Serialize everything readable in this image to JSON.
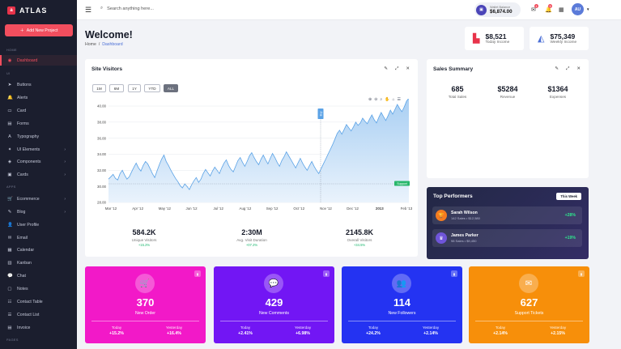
{
  "brand": {
    "logo": "a",
    "name": "ATLAS"
  },
  "sidebar": {
    "add_button": "Add New Project",
    "sections": {
      "home": "HOME",
      "ui": "UI",
      "apps": "APPS",
      "pages": "PAGES"
    },
    "items": [
      {
        "label": "Dashboard",
        "icon": "dashboard-icon",
        "glyph": "◉"
      },
      {
        "label": "Buttons",
        "icon": "cursor-icon",
        "glyph": "➤"
      },
      {
        "label": "Alerts",
        "icon": "bell-icon",
        "glyph": "🔔"
      },
      {
        "label": "Card",
        "icon": "card-icon",
        "glyph": "▭"
      },
      {
        "label": "Forms",
        "icon": "forms-icon",
        "glyph": "▤"
      },
      {
        "label": "Typography",
        "icon": "typography-icon",
        "glyph": "A"
      },
      {
        "label": "UI Elements",
        "icon": "elements-icon",
        "glyph": "✦"
      },
      {
        "label": "Components",
        "icon": "components-icon",
        "glyph": "◈"
      },
      {
        "label": "Cards",
        "icon": "cards-icon",
        "glyph": "▣"
      },
      {
        "label": "Ecommerce",
        "icon": "cart-icon",
        "glyph": "🛒"
      },
      {
        "label": "Blog",
        "icon": "blog-icon",
        "glyph": "✎"
      },
      {
        "label": "User Profile",
        "icon": "user-icon",
        "glyph": "👤"
      },
      {
        "label": "Email",
        "icon": "email-icon",
        "glyph": "✉"
      },
      {
        "label": "Calendar",
        "icon": "calendar-icon",
        "glyph": "▦"
      },
      {
        "label": "Kanban",
        "icon": "kanban-icon",
        "glyph": "▥"
      },
      {
        "label": "Chat",
        "icon": "chat-icon",
        "glyph": "💬"
      },
      {
        "label": "Notes",
        "icon": "notes-icon",
        "glyph": "▢"
      },
      {
        "label": "Contact Table",
        "icon": "table-icon",
        "glyph": "☷"
      },
      {
        "label": "Contact List",
        "icon": "list-icon",
        "glyph": "☰"
      },
      {
        "label": "Invoice",
        "icon": "invoice-icon",
        "glyph": "▤"
      }
    ]
  },
  "topbar": {
    "search_placeholder": "Search anything here...",
    "wallet_label": "Wallet Balance",
    "wallet_value": "$6,874.00",
    "mail_badge": "4",
    "bell_badge": "5",
    "avatar": "AU"
  },
  "header": {
    "title": "Welcome!",
    "breadcrumb_home": "Home",
    "breadcrumb_sep": "/",
    "breadcrumb_current": "Dashboard"
  },
  "stats": [
    {
      "value": "$8,521",
      "label": "Today Income",
      "color": "#e8334a"
    },
    {
      "value": "$75,349",
      "label": "Weekly Income",
      "color": "#4b6fd6"
    }
  ],
  "site_visitors": {
    "title": "Site Visitors",
    "ranges": [
      "1M",
      "6M",
      "1Y",
      "YTD",
      "ALL"
    ],
    "selected_range": "ALL",
    "kpis": [
      {
        "value": "584.2K",
        "label": "Unique Visitors",
        "change": "+15.2%"
      },
      {
        "value": "2:30M",
        "label": "Avg. Visit Duration",
        "change": "+07.2%"
      },
      {
        "value": "2145.8K",
        "label": "Overall Visitors",
        "change": "+34.5%"
      }
    ]
  },
  "chart_data": {
    "type": "area",
    "x_tick_labels": [
      "Mar '12",
      "Apr '12",
      "May '12",
      "Jun '12",
      "Jul '12",
      "Aug '12",
      "Sep '12",
      "Oct '12",
      "Nov '12",
      "Dec '12",
      "2013",
      "Feb '13"
    ],
    "y_tick_labels": [
      "28.00",
      "30.00",
      "32.00",
      "34.00",
      "36.00",
      "38.00",
      "40.00"
    ],
    "ylim": [
      28,
      40
    ],
    "series": [
      {
        "values": [
          30.9,
          31.2,
          31.5,
          31.0,
          30.8,
          31.6,
          32.0,
          31.4,
          30.9,
          31.2,
          31.8,
          32.4,
          32.9,
          32.3,
          31.9,
          32.6,
          33.1,
          32.8,
          32.2,
          31.6,
          31.1,
          31.9,
          32.7,
          33.4,
          33.9,
          33.1,
          32.6,
          32.0,
          31.5,
          31.0,
          30.6,
          30.1,
          29.8,
          30.3,
          30.0,
          29.6,
          30.2,
          30.7,
          31.1,
          30.5,
          30.9,
          31.6,
          32.1,
          31.7,
          31.3,
          31.9,
          32.4,
          32.0,
          31.6,
          32.3,
          32.9,
          33.3,
          32.6,
          32.1,
          31.8,
          32.5,
          33.2,
          33.6,
          33.0,
          32.5,
          33.1,
          33.8,
          34.2,
          33.6,
          33.1,
          32.7,
          33.4,
          33.9,
          33.3,
          32.8,
          33.5,
          34.1,
          33.6,
          33.0,
          32.5,
          33.2,
          33.7,
          34.3,
          33.8,
          33.3,
          32.8,
          32.3,
          32.9,
          33.5,
          32.9,
          32.4,
          32.0,
          32.6,
          33.1,
          32.5,
          32.0,
          31.6,
          32.2,
          32.8,
          33.4,
          34.0,
          34.6,
          35.2,
          35.9,
          36.6,
          37.0,
          36.5,
          37.1,
          37.7,
          37.3,
          36.9,
          37.4,
          38.0,
          37.6,
          37.9,
          38.5,
          38.1,
          37.8,
          38.4,
          38.9,
          38.3,
          37.9,
          38.6,
          39.2,
          38.7,
          38.2,
          38.8,
          39.5,
          39.0,
          39.6,
          40.2,
          39.7,
          39.3,
          39.9,
          40.6,
          41.0
        ]
      }
    ],
    "annotations": [
      "Buy",
      "Support"
    ],
    "grid": true,
    "colors": {
      "line": "#5aa2e6",
      "fill_top": "#a9cff3",
      "fill_bottom": "#eaf3fc",
      "annotation": "#5aa2e6",
      "support": "#28b76b"
    }
  },
  "sales_summary": {
    "title": "Sales Summary",
    "items": [
      {
        "value": "685",
        "label": "Total Sales"
      },
      {
        "value": "$5284",
        "label": "Revenue"
      },
      {
        "value": "$1364",
        "label": "Expenses"
      }
    ]
  },
  "top_performers": {
    "title": "Top Performers",
    "badge": "This Week",
    "people": [
      {
        "name": "Sarah Wilson",
        "sub": "142 Sales • $12,580",
        "pct": "+28%",
        "color": "#f47b20",
        "glyph": "🏆"
      },
      {
        "name": "James Parker",
        "sub": "98 Sales • $9,450",
        "pct": "+19%",
        "color": "#6f55d9",
        "glyph": "♛"
      }
    ]
  },
  "color_cards": [
    {
      "value": "370",
      "label": "New Order",
      "today_label": "Today",
      "today": "+15.2%",
      "yest_label": "Yesterday",
      "yest": "+16.4%",
      "color": "#f219c8",
      "icon": "cart-icon",
      "glyph": "🛒",
      "tag": "▮"
    },
    {
      "value": "429",
      "label": "New Comments",
      "today_label": "Today",
      "today": "+2.41%",
      "yest_label": "Yesterday",
      "yest": "+6.98%",
      "color": "#7216f4",
      "icon": "comments-icon",
      "glyph": "💬",
      "tag": "▮"
    },
    {
      "value": "114",
      "label": "New Followers",
      "today_label": "Today",
      "today": "+24.2%",
      "yest_label": "Yesterday",
      "yest": "+2.14%",
      "color": "#2433f2",
      "icon": "users-icon",
      "glyph": "👥",
      "tag": "▮"
    },
    {
      "value": "627",
      "label": "Support Tickets",
      "today_label": "Today",
      "today": "+2.14%",
      "yest_label": "Yesterday",
      "yest": "+2.15%",
      "color": "#f78f0a",
      "icon": "ticket-icon",
      "glyph": "✉",
      "tag": "▮"
    }
  ]
}
